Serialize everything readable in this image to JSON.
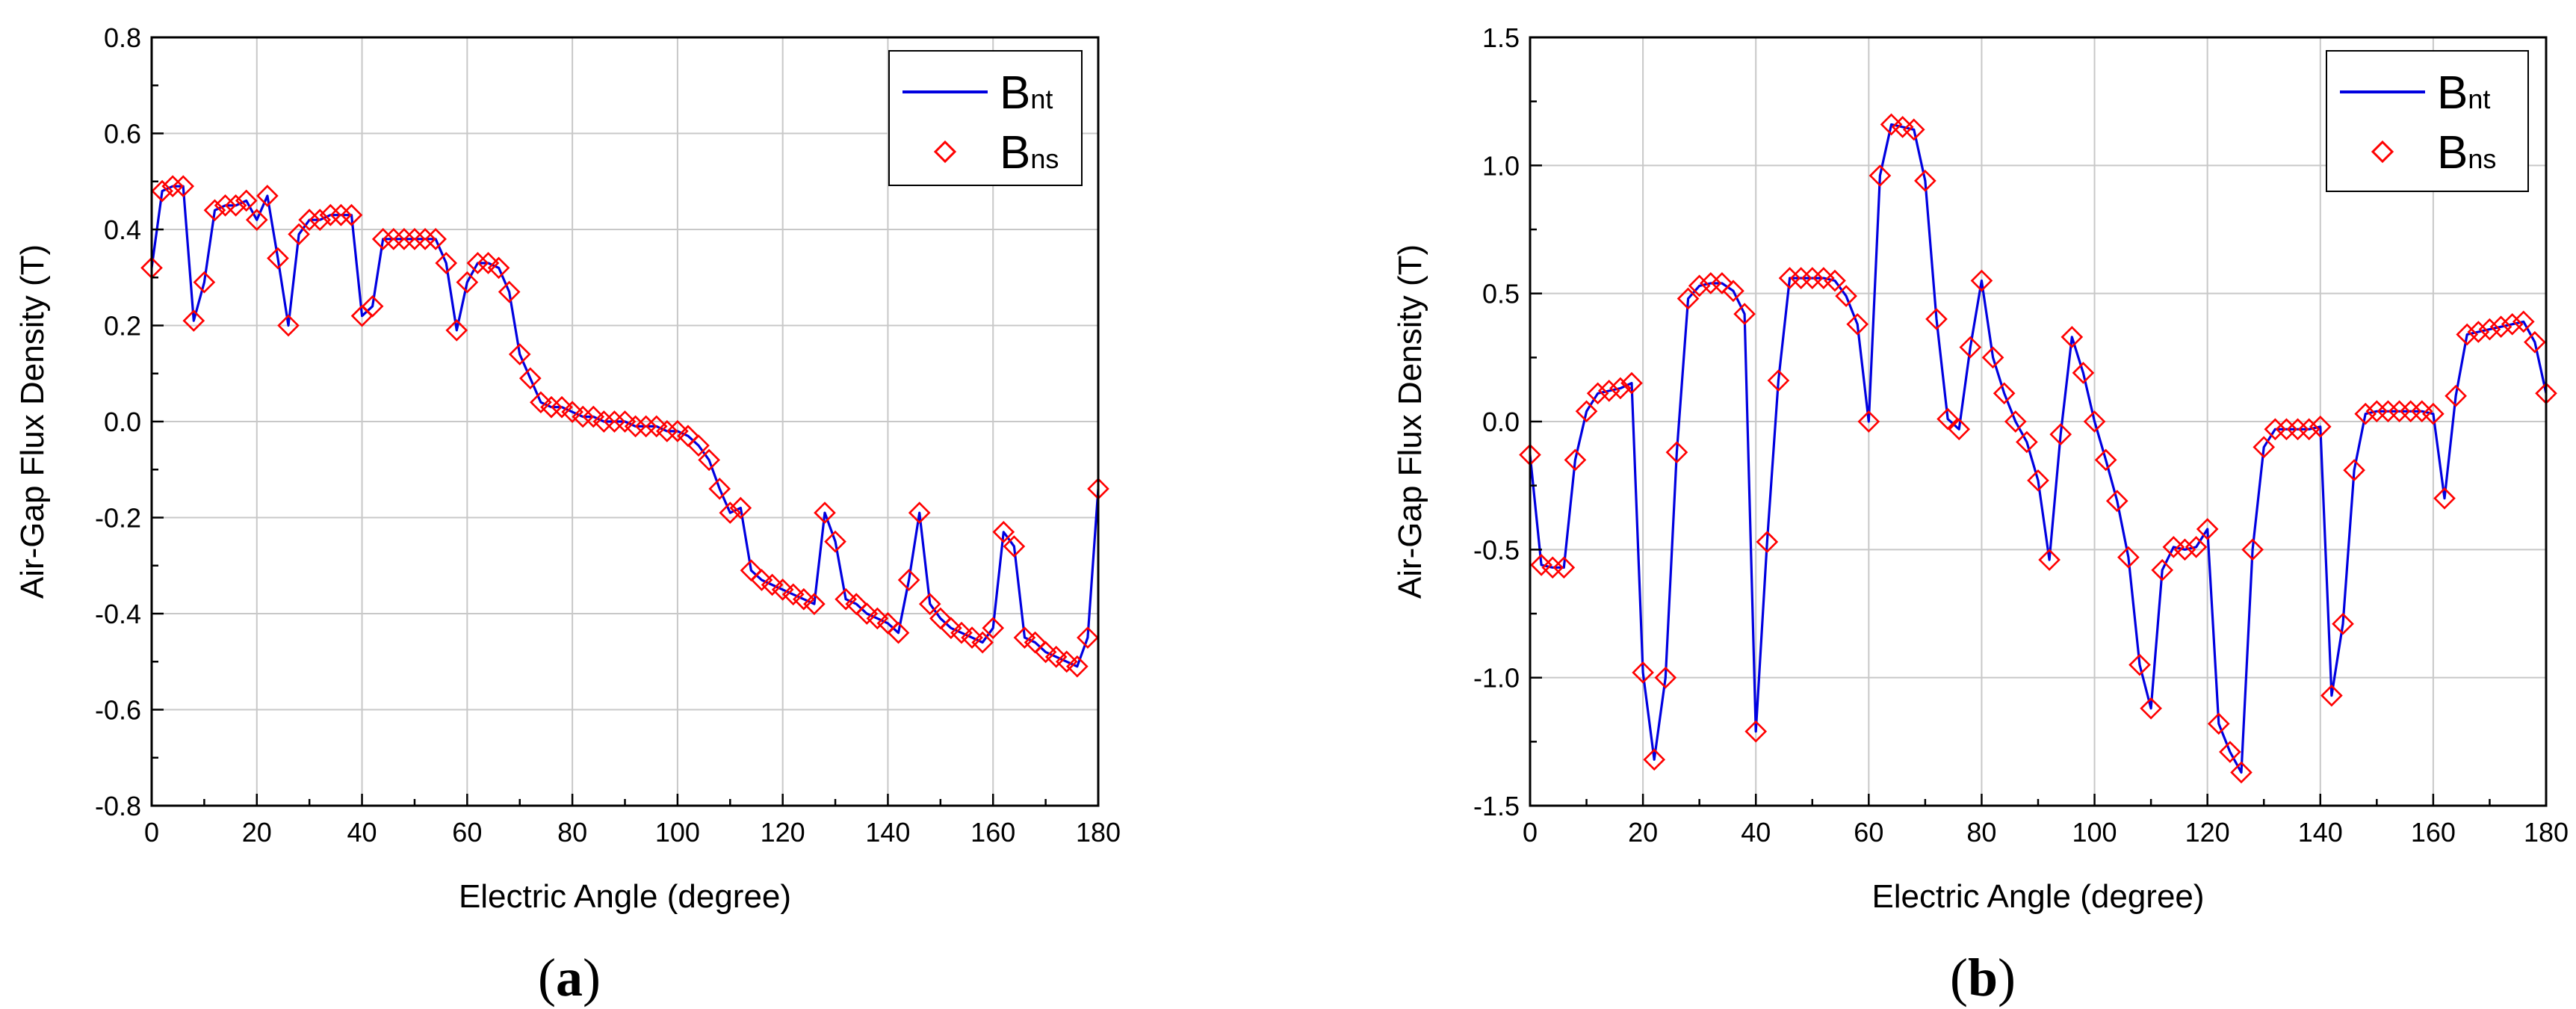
{
  "chart_data": [
    {
      "type": "line",
      "panel_label": "a",
      "xlabel": "Electric Angle (degree)",
      "ylabel": "Air-Gap Flux Density (T)",
      "xlim": [
        0,
        180
      ],
      "ylim": [
        -0.8,
        0.8
      ],
      "xticks": [
        0,
        20,
        40,
        60,
        80,
        100,
        120,
        140,
        160,
        180
      ],
      "yticks": [
        -0.8,
        -0.6,
        -0.4,
        -0.2,
        0.0,
        0.2,
        0.4,
        0.6,
        0.8
      ],
      "ytick_labels": [
        "-0.8",
        "-0.6",
        "-0.4",
        "-0.2",
        "0.0",
        "0.2",
        "0.4",
        "0.6",
        "0.8"
      ],
      "xtick_labels": [
        "0",
        "20",
        "40",
        "60",
        "80",
        "100",
        "120",
        "140",
        "160",
        "180"
      ],
      "grid": true,
      "legend_position": "top-right",
      "series": [
        {
          "name": "Bnt",
          "label_main": "B",
          "label_sub": "nt",
          "style": "line",
          "color": "#0000e0"
        },
        {
          "name": "Bns",
          "label_main": "B",
          "label_sub": "ns",
          "style": "diamond-marker",
          "color": "#ff0000"
        }
      ],
      "x": [
        0,
        2,
        4,
        6,
        8,
        10,
        12,
        14,
        16,
        18,
        20,
        22,
        24,
        26,
        28,
        30,
        32,
        34,
        36,
        38,
        40,
        42,
        44,
        46,
        48,
        50,
        52,
        54,
        56,
        58,
        60,
        62,
        64,
        66,
        68,
        70,
        72,
        74,
        76,
        78,
        80,
        82,
        84,
        86,
        88,
        90,
        92,
        94,
        96,
        98,
        100,
        102,
        104,
        106,
        108,
        110,
        112,
        114,
        116,
        118,
        120,
        122,
        124,
        126,
        128,
        130,
        132,
        134,
        136,
        138,
        140,
        142,
        144,
        146,
        148,
        150,
        152,
        154,
        156,
        158,
        160,
        162,
        164,
        166,
        168,
        170,
        172,
        174,
        176,
        178,
        180
      ],
      "y": [
        0.32,
        0.48,
        0.49,
        0.49,
        0.21,
        0.29,
        0.44,
        0.45,
        0.45,
        0.46,
        0.42,
        0.47,
        0.34,
        0.2,
        0.39,
        0.42,
        0.42,
        0.43,
        0.43,
        0.43,
        0.22,
        0.24,
        0.38,
        0.38,
        0.38,
        0.38,
        0.38,
        0.38,
        0.33,
        0.19,
        0.29,
        0.33,
        0.33,
        0.32,
        0.27,
        0.14,
        0.09,
        0.04,
        0.03,
        0.03,
        0.02,
        0.01,
        0.01,
        0.0,
        0.0,
        0.0,
        -0.01,
        -0.01,
        -0.01,
        -0.02,
        -0.02,
        -0.03,
        -0.05,
        -0.08,
        -0.14,
        -0.19,
        -0.18,
        -0.31,
        -0.33,
        -0.34,
        -0.35,
        -0.36,
        -0.37,
        -0.38,
        -0.19,
        -0.25,
        -0.37,
        -0.38,
        -0.4,
        -0.41,
        -0.42,
        -0.44,
        -0.33,
        -0.19,
        -0.38,
        -0.41,
        -0.43,
        -0.44,
        -0.45,
        -0.46,
        -0.43,
        -0.23,
        -0.26,
        -0.45,
        -0.46,
        -0.48,
        -0.49,
        -0.5,
        -0.51,
        -0.45,
        -0.14
      ]
    },
    {
      "type": "line",
      "panel_label": "b",
      "xlabel": "Electric Angle (degree)",
      "ylabel": "Air-Gap Flux Density (T)",
      "xlim": [
        0,
        180
      ],
      "ylim": [
        -1.5,
        1.5
      ],
      "xticks": [
        0,
        20,
        40,
        60,
        80,
        100,
        120,
        140,
        160,
        180
      ],
      "yticks": [
        -1.5,
        -1.0,
        -0.5,
        0.0,
        0.5,
        1.0,
        1.5
      ],
      "ytick_labels": [
        "-1.5",
        "-1.0",
        "-0.5",
        "0.0",
        "0.5",
        "1.0",
        "1.5"
      ],
      "xtick_labels": [
        "0",
        "20",
        "40",
        "60",
        "80",
        "100",
        "120",
        "140",
        "160",
        "180"
      ],
      "grid": true,
      "legend_position": "top-right",
      "series": [
        {
          "name": "Bnt",
          "label_main": "B",
          "label_sub": "nt",
          "style": "line",
          "color": "#0000e0"
        },
        {
          "name": "Bns",
          "label_main": "B",
          "label_sub": "ns",
          "style": "diamond-marker",
          "color": "#ff0000"
        }
      ],
      "x": [
        0,
        2,
        4,
        6,
        8,
        10,
        12,
        14,
        16,
        18,
        20,
        22,
        24,
        26,
        28,
        30,
        32,
        34,
        36,
        38,
        40,
        42,
        44,
        46,
        48,
        50,
        52,
        54,
        56,
        58,
        60,
        62,
        64,
        66,
        68,
        70,
        72,
        74,
        76,
        78,
        80,
        82,
        84,
        86,
        88,
        90,
        92,
        94,
        96,
        98,
        100,
        102,
        104,
        106,
        108,
        110,
        112,
        114,
        116,
        118,
        120,
        122,
        124,
        126,
        128,
        130,
        132,
        134,
        136,
        138,
        140,
        142,
        144,
        146,
        148,
        150,
        152,
        154,
        156,
        158,
        160,
        162,
        164,
        166,
        168,
        170,
        172,
        174,
        176,
        178,
        180
      ],
      "y": [
        -0.13,
        -0.56,
        -0.57,
        -0.57,
        -0.15,
        0.04,
        0.11,
        0.12,
        0.13,
        0.15,
        -0.98,
        -1.32,
        -1.0,
        -0.12,
        0.48,
        0.53,
        0.54,
        0.54,
        0.51,
        0.42,
        -1.21,
        -0.47,
        0.16,
        0.56,
        0.56,
        0.56,
        0.56,
        0.55,
        0.49,
        0.38,
        0.0,
        0.96,
        1.16,
        1.15,
        1.14,
        0.94,
        0.4,
        0.01,
        -0.03,
        0.29,
        0.55,
        0.25,
        0.11,
        0.0,
        -0.08,
        -0.23,
        -0.54,
        -0.05,
        0.33,
        0.19,
        0.0,
        -0.15,
        -0.31,
        -0.53,
        -0.95,
        -1.12,
        -0.58,
        -0.49,
        -0.5,
        -0.49,
        -0.42,
        -1.18,
        -1.29,
        -1.37,
        -0.5,
        -0.1,
        -0.03,
        -0.03,
        -0.03,
        -0.03,
        -0.02,
        -1.07,
        -0.79,
        -0.19,
        0.03,
        0.04,
        0.04,
        0.04,
        0.04,
        0.04,
        0.03,
        -0.3,
        0.1,
        0.34,
        0.35,
        0.36,
        0.37,
        0.38,
        0.39,
        0.31,
        0.11
      ]
    }
  ],
  "colors": {
    "line": "#0000e0",
    "marker": "#ff0000",
    "grid": "#c8c8c8",
    "axis": "#000000"
  }
}
